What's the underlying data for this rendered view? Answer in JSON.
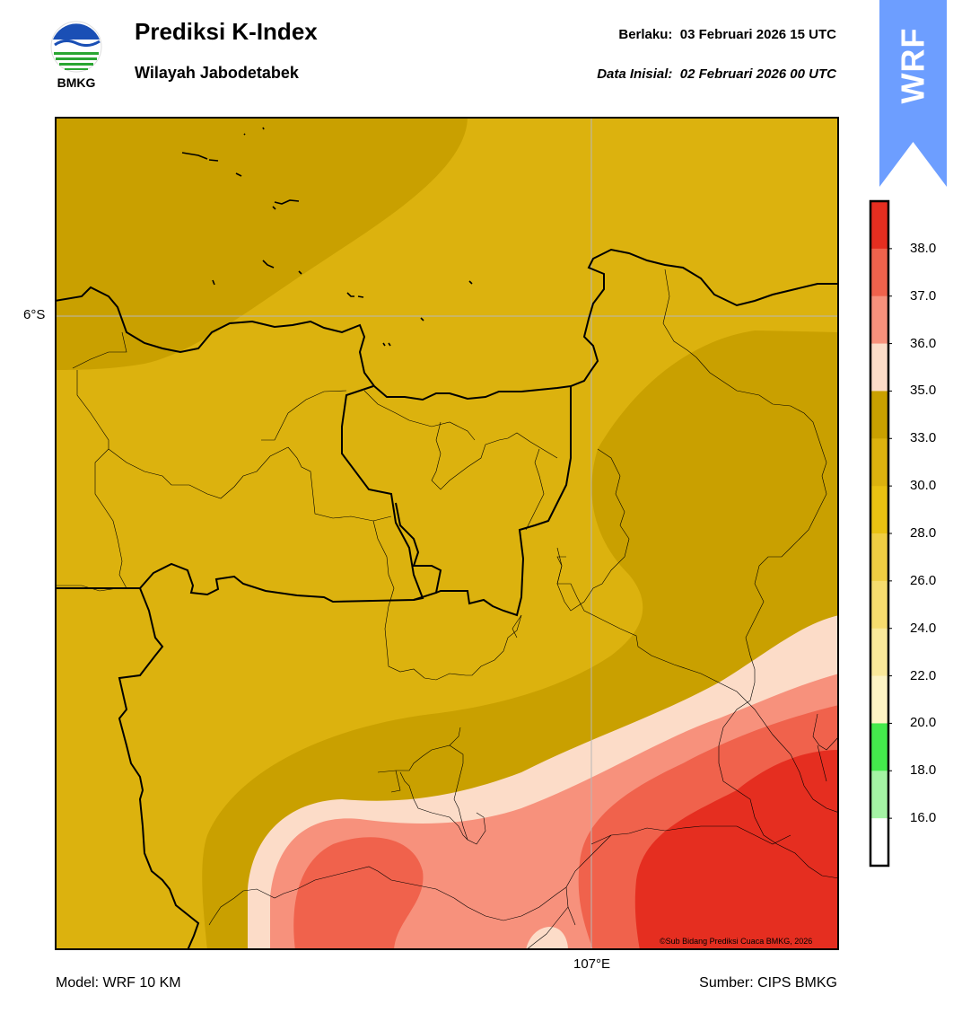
{
  "header": {
    "title": "Prediksi K-Index",
    "subtitle": "Wilayah Jabodetabek",
    "valid_label": "Berlaku:",
    "valid_value": "03 Februari 2026 15 UTC",
    "init_label": "Data Inisial:",
    "init_value": "02 Februari 2026 00 UTC"
  },
  "logo": {
    "text": "BMKG",
    "icon": "bmkg-logo"
  },
  "badge": {
    "text": "WRF",
    "color": "#6d9eff"
  },
  "map": {
    "lat_label": "6°S",
    "lon_label": "107°E",
    "credit": "©Sub Bidang Prediksi Cuaca BMKG, 2026",
    "colors": {
      "darker_gold": "#c9a000",
      "gold": "#dcb20e",
      "peach": "#fcdcc8",
      "salmon": "#f7917c",
      "coral": "#f0624c",
      "red": "#e52e20"
    }
  },
  "colorbar": {
    "ticks": [
      "38.0",
      "37.0",
      "36.0",
      "35.0",
      "33.0",
      "30.0",
      "28.0",
      "26.0",
      "24.0",
      "22.0",
      "20.0",
      "18.0",
      "16.0"
    ],
    "colors": [
      "#e52e20",
      "#f0624c",
      "#f7917c",
      "#fcdcc8",
      "#c9a000",
      "#dcb20e",
      "#e9c112",
      "#f0ce42",
      "#f6dc6e",
      "#fae99a",
      "#fdf4c4",
      "#44ea4c",
      "#a4f3a4",
      "#ffffff"
    ]
  },
  "footer": {
    "model": "Model: WRF 10 KM",
    "source": "Sumber: CIPS BMKG"
  }
}
